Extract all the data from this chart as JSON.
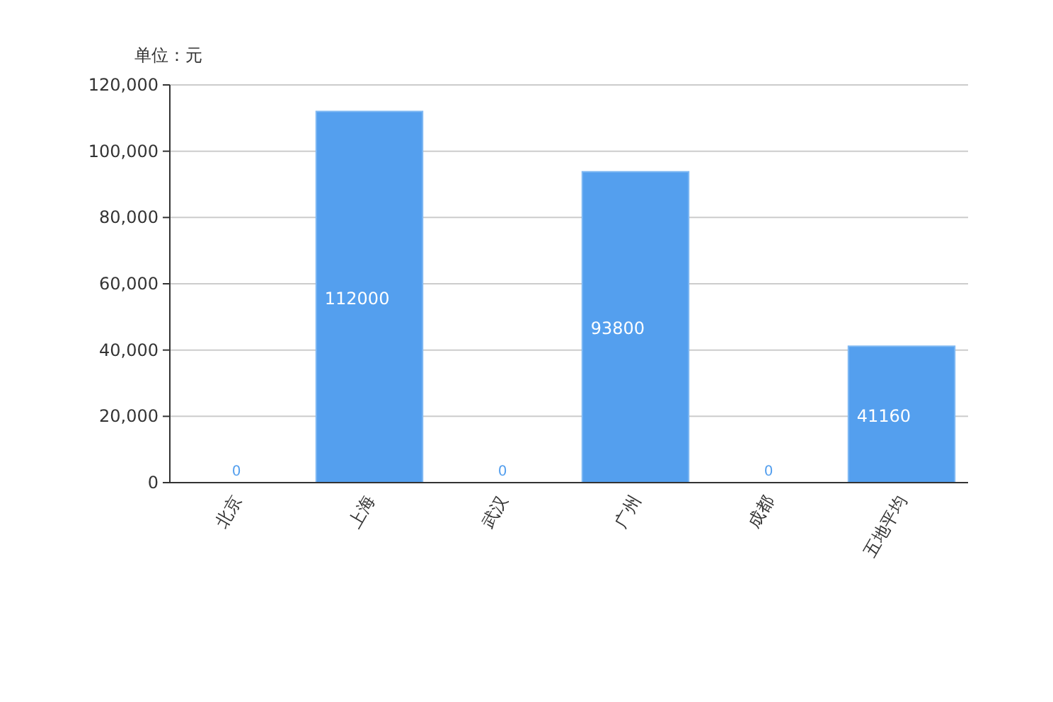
{
  "chart_data": {
    "type": "bar",
    "ylabel": "单位：元",
    "categories": [
      "北京",
      "上海",
      "武汉",
      "广州",
      "成都",
      "五地平均"
    ],
    "series": [
      {
        "color": "#549fee",
        "values": [
          0,
          112000,
          0,
          93800,
          0,
          41160
        ]
      }
    ],
    "ylim": [
      0,
      120000
    ],
    "yticks": [
      0,
      {
        "value": 20000,
        "label": "20,000"
      },
      {
        "value": 40000,
        "label": "40,000"
      },
      {
        "value": 60000,
        "label": "60,000"
      },
      {
        "value": 80000,
        "label": "80,000"
      },
      {
        "value": 100000,
        "label": "100,000"
      },
      {
        "value": 120000,
        "label": "120,000"
      }
    ],
    "grid": "y",
    "data_labels": true
  }
}
